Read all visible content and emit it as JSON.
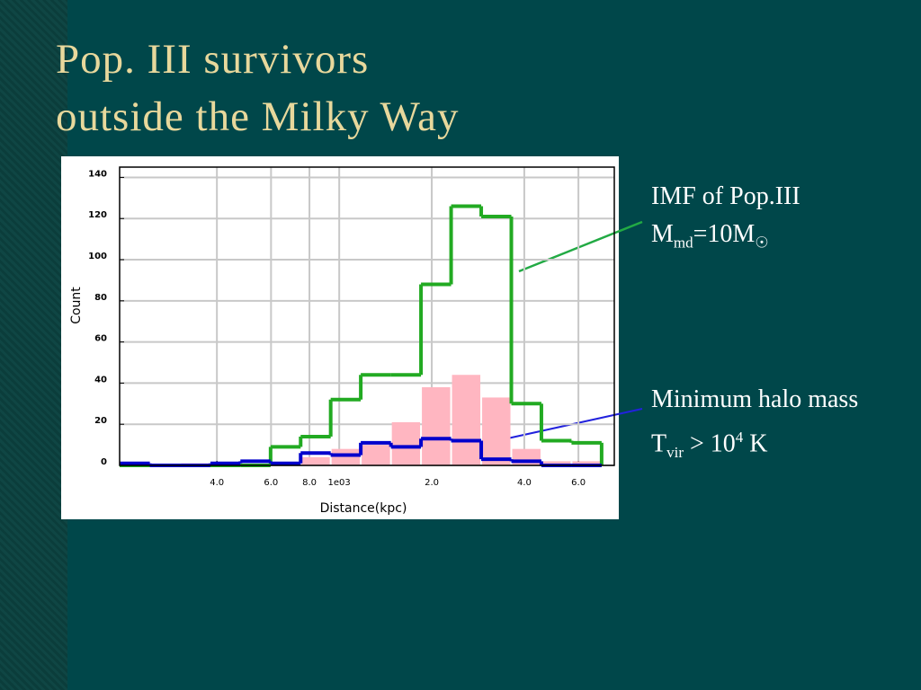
{
  "slide_title": [
    "Pop. III survivors",
    "outside the Milky Way"
  ],
  "annotations": [
    {
      "color": "#22aa44",
      "lines": [
        [
          {
            "text": "IMF of Pop.III"
          }
        ],
        [
          {
            "text": "M"
          },
          {
            "text": "md",
            "style": "sub"
          },
          {
            "text": "=10M"
          },
          {
            "text": "☉",
            "style": "sub"
          }
        ]
      ]
    },
    {
      "color": "#2222dd",
      "lines": [
        [
          {
            "text": "Minimum halo mass"
          }
        ],
        [
          {
            "text": "T"
          },
          {
            "text": "vir",
            "style": "sub"
          },
          {
            "text": " > 10"
          },
          {
            "text": "4",
            "style": "sup"
          },
          {
            "text": " K"
          }
        ]
      ]
    }
  ],
  "chart_data": {
    "type": "histogram",
    "xlabel": "Distance(kpc)",
    "ylabel": "Count",
    "xscale": "log",
    "grid": true,
    "bins": [
      193,
      242,
      304,
      381,
      477,
      598,
      749,
      938,
      1175,
      1473,
      1845,
      2312,
      2897,
      3630,
      4547,
      5697,
      7138
    ],
    "series": [
      {
        "color": "#ffb6c1",
        "style": "filled",
        "values": [
          0,
          0,
          1,
          0,
          0,
          0,
          4,
          8,
          10,
          21,
          38,
          44,
          33,
          8,
          2,
          2
        ]
      },
      {
        "color": "#22aa22",
        "style": "step",
        "values": [
          0,
          0,
          0,
          0,
          0,
          9,
          14,
          32,
          44,
          44,
          88,
          126,
          121,
          30,
          12,
          11
        ]
      },
      {
        "color": "#0000cc",
        "style": "step",
        "values": [
          1,
          0,
          0,
          1,
          2,
          1,
          6,
          5,
          11,
          9,
          13,
          12,
          3,
          2,
          0,
          0
        ]
      }
    ],
    "xlim": [
      193,
      7850
    ],
    "ylim": [
      0,
      145
    ],
    "xticks": [
      {
        "value": 400,
        "label": "4.0"
      },
      {
        "value": 600,
        "label": "6.0"
      },
      {
        "value": 800,
        "label": "8.0"
      },
      {
        "value": 1000,
        "label": "1e03"
      },
      {
        "value": 2000,
        "label": "2.0"
      },
      {
        "value": 4000,
        "label": "4.0"
      },
      {
        "value": 6000,
        "label": "6.0"
      }
    ],
    "yticks": [
      0,
      20,
      40,
      60,
      80,
      100,
      120,
      140
    ]
  }
}
